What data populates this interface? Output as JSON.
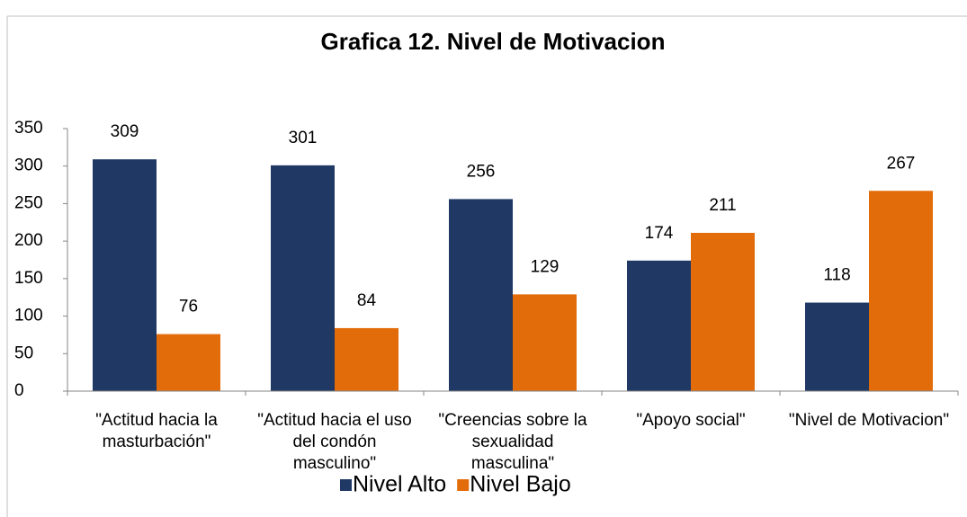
{
  "chart_data": {
    "type": "bar",
    "title": "Grafica 12. Nivel de Motivacion",
    "categories": [
      "\"Actitud hacia la masturbación\"",
      "\"Actitud hacia el uso del condón masculino\"",
      "\"Creencias sobre la sexualidad masculina\"",
      "\"Apoyo social\"",
      "\"Nivel de Motivacion\""
    ],
    "series": [
      {
        "name": "Nivel Alto",
        "color": "#1f3864",
        "values": [
          309,
          301,
          256,
          174,
          118
        ]
      },
      {
        "name": "Nivel Bajo",
        "color": "#e36c0a",
        "values": [
          76,
          84,
          129,
          211,
          267
        ]
      }
    ],
    "ylim": [
      0,
      350
    ],
    "yticks": [
      0,
      50,
      100,
      150,
      200,
      250,
      300,
      350
    ],
    "grid": false,
    "legend": "bottom"
  }
}
